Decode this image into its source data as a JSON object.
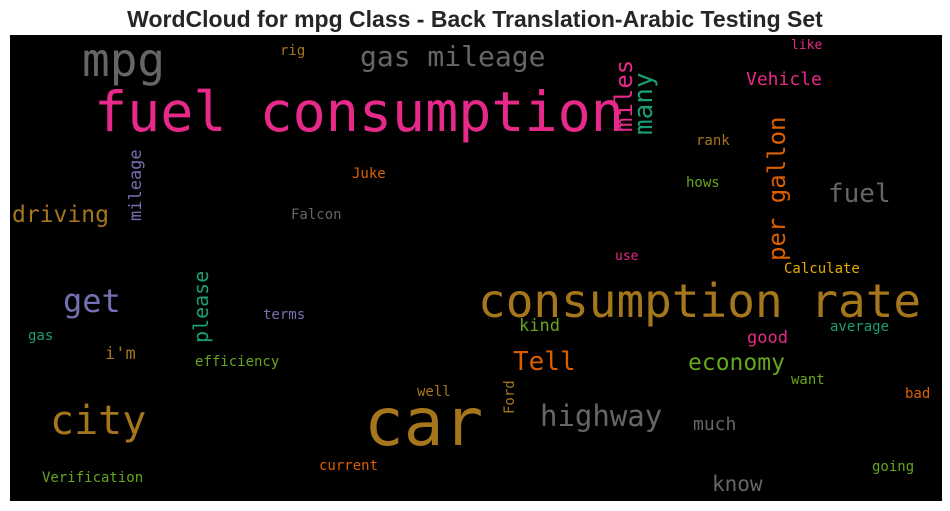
{
  "title": "WordCloud for mpg Class - Back Translation-Arabic Testing Set",
  "words": [
    {
      "text": "fuel consumption",
      "color": "#e7298a"
    },
    {
      "text": "car",
      "color": "#a6761d"
    },
    {
      "text": "consumption rate",
      "color": "#a6761d"
    },
    {
      "text": "mpg",
      "color": "#666666"
    },
    {
      "text": "city",
      "color": "#a6761d"
    },
    {
      "text": "gas mileage",
      "color": "#666666"
    },
    {
      "text": "highway",
      "color": "#666666"
    },
    {
      "text": "get",
      "color": "#7570b3"
    },
    {
      "text": "many",
      "color": "#1b9e77"
    },
    {
      "text": "miles",
      "color": "#e7298a"
    },
    {
      "text": "per gallon",
      "color": "#d95f02"
    },
    {
      "text": "driving",
      "color": "#a6761d"
    },
    {
      "text": "fuel",
      "color": "#666666"
    },
    {
      "text": "Tell",
      "color": "#d95f02"
    },
    {
      "text": "economy",
      "color": "#66a61e"
    },
    {
      "text": "please",
      "color": "#1b9e77"
    },
    {
      "text": "mileage",
      "color": "#7570b3"
    },
    {
      "text": "Vehicle",
      "color": "#e7298a"
    },
    {
      "text": "know",
      "color": "#666666"
    },
    {
      "text": "much",
      "color": "#666666"
    },
    {
      "text": "good",
      "color": "#e7298a"
    },
    {
      "text": "kind",
      "color": "#66a61e"
    },
    {
      "text": "i'm",
      "color": "#a6761d"
    },
    {
      "text": "Juke",
      "color": "#d95f02"
    },
    {
      "text": "Falcon",
      "color": "#666666"
    },
    {
      "text": "rank",
      "color": "#a6761d"
    },
    {
      "text": "hows",
      "color": "#66a61e"
    },
    {
      "text": "like",
      "color": "#e7298a"
    },
    {
      "text": "rig",
      "color": "#a6761d"
    },
    {
      "text": "use",
      "color": "#e7298a"
    },
    {
      "text": "Calculate",
      "color": "#e6ab02"
    },
    {
      "text": "terms",
      "color": "#7570b3"
    },
    {
      "text": "average",
      "color": "#1b9e77"
    },
    {
      "text": "gas",
      "color": "#1b9e77"
    },
    {
      "text": "efficiency",
      "color": "#66a61e"
    },
    {
      "text": "want",
      "color": "#66a61e"
    },
    {
      "text": "well",
      "color": "#a6761d"
    },
    {
      "text": "Ford",
      "color": "#a6761d"
    },
    {
      "text": "bad",
      "color": "#d95f02"
    },
    {
      "text": "current",
      "color": "#d95f02"
    },
    {
      "text": "going",
      "color": "#66a61e"
    },
    {
      "text": "Verification",
      "color": "#66a61e"
    }
  ]
}
